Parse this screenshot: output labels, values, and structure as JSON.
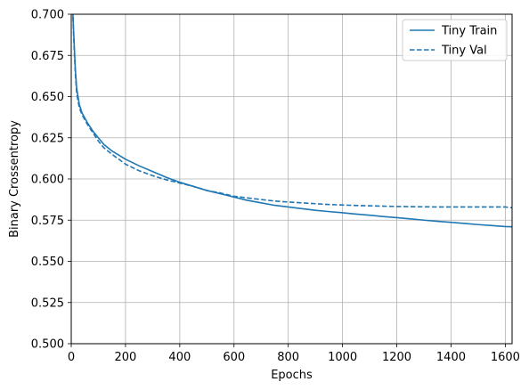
{
  "chart_data": {
    "type": "line",
    "title": "",
    "xlabel": "Epochs",
    "ylabel": "Binary Crossentropy",
    "xlim": [
      0,
      1625
    ],
    "ylim": [
      0.5,
      0.7
    ],
    "xticks": [
      0,
      200,
      400,
      600,
      800,
      1000,
      1200,
      1400,
      1600
    ],
    "xtick_labels": [
      "0",
      "200",
      "400",
      "600",
      "800",
      "1000",
      "1200",
      "1400",
      "1600"
    ],
    "yticks": [
      0.5,
      0.525,
      0.55,
      0.575,
      0.6,
      0.625,
      0.65,
      0.675,
      0.7
    ],
    "ytick_labels": [
      "0.500",
      "0.525",
      "0.550",
      "0.575",
      "0.600",
      "0.625",
      "0.650",
      "0.675",
      "0.700"
    ],
    "grid": true,
    "legend_position": "top-right",
    "series": [
      {
        "name": "Tiny Train",
        "style": "solid",
        "color": "#1f77b4",
        "x": [
          0,
          5,
          10,
          15,
          20,
          30,
          40,
          50,
          60,
          80,
          100,
          120,
          150,
          200,
          250,
          300,
          350,
          400,
          450,
          500,
          550,
          600,
          650,
          700,
          750,
          800,
          850,
          900,
          950,
          1000,
          1050,
          1100,
          1150,
          1200,
          1250,
          1300,
          1350,
          1400,
          1450,
          1500,
          1550,
          1600,
          1625
        ],
        "y": [
          0.72,
          0.705,
          0.685,
          0.667,
          0.655,
          0.645,
          0.64,
          0.637,
          0.634,
          0.629,
          0.625,
          0.621,
          0.617,
          0.612,
          0.608,
          0.6045,
          0.601,
          0.598,
          0.5955,
          0.593,
          0.591,
          0.589,
          0.587,
          0.5855,
          0.584,
          0.583,
          0.582,
          0.581,
          0.5802,
          0.5795,
          0.5787,
          0.578,
          0.5772,
          0.5765,
          0.5758,
          0.575,
          0.5743,
          0.5737,
          0.573,
          0.5723,
          0.5717,
          0.5711,
          0.571
        ]
      },
      {
        "name": "Tiny Val",
        "style": "dashed",
        "color": "#1f77b4",
        "x": [
          0,
          5,
          10,
          15,
          20,
          30,
          40,
          50,
          60,
          80,
          100,
          120,
          150,
          200,
          250,
          300,
          350,
          400,
          450,
          500,
          550,
          600,
          650,
          700,
          750,
          800,
          850,
          900,
          950,
          1000,
          1050,
          1100,
          1150,
          1200,
          1250,
          1300,
          1350,
          1400,
          1450,
          1500,
          1550,
          1600,
          1625
        ],
        "y": [
          0.72,
          0.703,
          0.682,
          0.664,
          0.652,
          0.643,
          0.639,
          0.636,
          0.633,
          0.628,
          0.623,
          0.619,
          0.615,
          0.609,
          0.605,
          0.602,
          0.5995,
          0.5975,
          0.5955,
          0.593,
          0.5915,
          0.5895,
          0.5885,
          0.5875,
          0.5866,
          0.586,
          0.5855,
          0.585,
          0.5845,
          0.5842,
          0.5839,
          0.5837,
          0.5835,
          0.5833,
          0.5832,
          0.5831,
          0.583,
          0.583,
          0.583,
          0.583,
          0.583,
          0.583,
          0.5825
        ]
      }
    ]
  }
}
